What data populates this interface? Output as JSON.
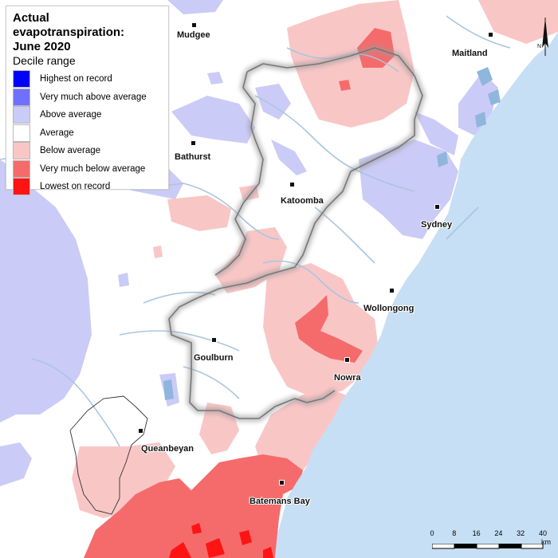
{
  "legend": {
    "title_line1": "Actual evapotranspiration:",
    "title_line2": "June 2020",
    "subtitle": "Decile range",
    "items": [
      {
        "label": "Highest on record",
        "color": "#0000ff"
      },
      {
        "label": "Very much above average",
        "color": "#7070ff"
      },
      {
        "label": "Above average",
        "color": "#cbcbf7"
      },
      {
        "label": "Average",
        "color": "#ffffff"
      },
      {
        "label": "Below average",
        "color": "#f9c6c6"
      },
      {
        "label": "Very much below average",
        "color": "#f56b6b"
      },
      {
        "label": "Lowest on record",
        "color": "#ff1414"
      }
    ]
  },
  "places": {
    "mudgee": "Mudgee",
    "maitland": "Maitland",
    "bathurst": "Bathurst",
    "katoomba": "Katoomba",
    "sydney": "Sydney",
    "wollongong": "Wollongong",
    "goulburn": "Goulburn",
    "nowra": "Nowra",
    "queanbeyan": "Queanbeyan",
    "batemans_bay": "Batemans Bay"
  },
  "scale": {
    "ticks": [
      "0",
      "8",
      "16",
      "24",
      "32",
      "40"
    ],
    "unit": "km"
  },
  "north_label": "N",
  "colors": {
    "ocean": "#c6dff5",
    "river": "#a9c6e0",
    "water_body": "#8fb6dd"
  }
}
